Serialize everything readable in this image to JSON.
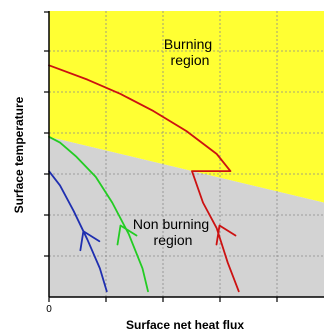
{
  "chart_data": {
    "type": "line",
    "xlabel": "Surface net heat flux",
    "ylabel": "Surface temperature",
    "x_tick_labels": [
      "0"
    ],
    "xlim": [
      0,
      10
    ],
    "ylim": [
      0,
      10
    ],
    "grid": true,
    "regions": [
      {
        "label_lines": [
          "Burning",
          "region"
        ],
        "color": "#ffff33"
      },
      {
        "label_lines": [
          "Non burning",
          "region"
        ],
        "color": "#d3d3d3"
      }
    ],
    "boundary": {
      "x": [
        0,
        10
      ],
      "y": [
        5.6,
        3.3
      ]
    },
    "series": [
      {
        "color": "#1f2fb0",
        "x": [
          2.1,
          1.85,
          1.4,
          0.9,
          0.4,
          0
        ],
        "y": [
          0.2,
          1.0,
          2.0,
          3.0,
          3.9,
          4.4
        ]
      },
      {
        "color": "#22cc22",
        "x": [
          3.6,
          3.4,
          2.9,
          2.3,
          1.7,
          1.0,
          0.4,
          0
        ],
        "y": [
          0.2,
          1.0,
          2.2,
          3.3,
          4.2,
          4.9,
          5.4,
          5.6
        ]
      },
      {
        "color": "#cc1111",
        "x": [
          6.9,
          6.5,
          6.1,
          5.6,
          5.2,
          6.6,
          6.6,
          6.1,
          5.0,
          3.8,
          2.6,
          1.4,
          0
        ],
        "y": [
          0.2,
          1.2,
          2.4,
          3.3,
          4.4,
          4.4,
          4.4,
          5.0,
          5.8,
          6.5,
          7.1,
          7.6,
          8.1
        ]
      }
    ],
    "arrows": [
      {
        "color": "#1f2fb0",
        "at": [
          1.25,
          2.3
        ]
      },
      {
        "color": "#22cc22",
        "at": [
          2.6,
          2.5
        ]
      },
      {
        "color": "#cc1111",
        "at": [
          6.2,
          2.5
        ]
      }
    ]
  }
}
